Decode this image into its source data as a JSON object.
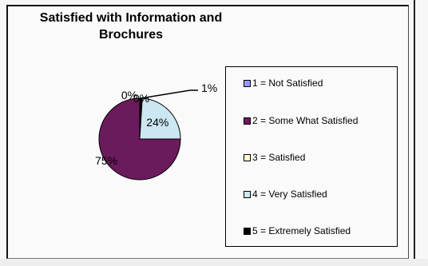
{
  "chart_data": {
    "type": "pie",
    "title_line1": "Satisfied with Information and",
    "title_line2": "Brochures",
    "categories": [
      "1 = Not Satisfied",
      "2 = Some What Satisfied",
      "3 = Satisfied",
      "4 = Very Satisfied",
      "5 = Extremely Satisfied"
    ],
    "values": [
      0,
      75,
      0,
      24,
      1
    ],
    "data_labels": [
      "0%",
      "75%",
      "0%",
      "24%",
      "1%"
    ],
    "colors": [
      "#9999ff",
      "#6b1a5c",
      "#ffffcc",
      "#cce6f2",
      "#000000"
    ],
    "legend_placement": "right"
  }
}
